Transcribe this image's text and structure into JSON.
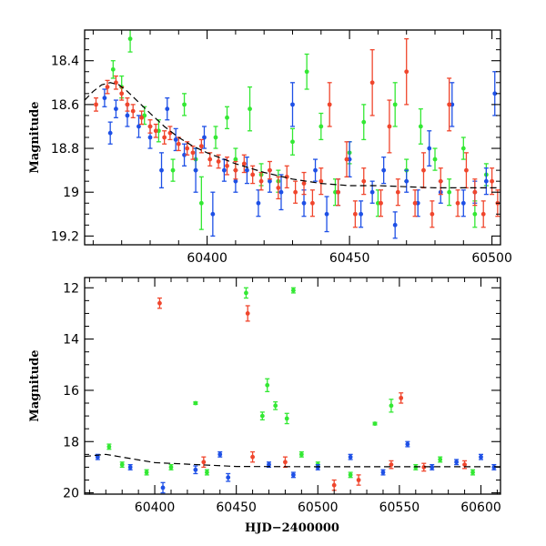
{
  "colors": {
    "green": "#33e833",
    "blue": "#1e50e6",
    "red": "#f0462d",
    "model": "#000000"
  },
  "chart_data": [
    {
      "type": "scatter",
      "title": "",
      "xlabel": "",
      "ylabel": "Magnitude",
      "xlim": [
        60357,
        60503
      ],
      "ylim": [
        19.24,
        18.26
      ],
      "y_inverted": true,
      "xticks": [
        60400,
        60450,
        60500
      ],
      "yticks": [
        18.4,
        18.6,
        18.8,
        19,
        19.2
      ],
      "xtick_labels": [
        "60400",
        "60450",
        "60500"
      ],
      "ytick_labels": [
        "18.4",
        "18.6",
        "18.8",
        "19",
        "19.2"
      ],
      "model_curve": {
        "style": "dashed",
        "x": [
          60357,
          60360,
          60363,
          60366,
          60369,
          60372,
          60376,
          60380,
          60385,
          60390,
          60395,
          60400,
          60410,
          60420,
          60430,
          60440,
          60450,
          60460,
          60470,
          60480,
          60490,
          60500,
          60503
        ],
        "y": [
          18.58,
          18.54,
          18.51,
          18.5,
          18.51,
          18.54,
          18.59,
          18.64,
          18.7,
          18.75,
          18.79,
          18.82,
          18.87,
          18.91,
          18.94,
          18.96,
          18.97,
          18.97,
          18.975,
          18.98,
          18.98,
          18.98,
          18.98
        ]
      },
      "series": [
        {
          "name": "green",
          "points": [
            [
              60367,
              18.44,
              0.04
            ],
            [
              60370,
              18.52,
              0.05
            ],
            [
              60373,
              18.3,
              0.06
            ],
            [
              60378,
              18.65,
              0.04
            ],
            [
              60383,
              18.72,
              0.05
            ],
            [
              60388,
              18.9,
              0.05
            ],
            [
              60392,
              18.6,
              0.05
            ],
            [
              60396,
              18.85,
              0.05
            ],
            [
              60398,
              19.05,
              0.12
            ],
            [
              60403,
              18.75,
              0.05
            ],
            [
              60407,
              18.66,
              0.05
            ],
            [
              60410,
              18.85,
              0.05
            ],
            [
              60415,
              18.62,
              0.1
            ],
            [
              60419,
              18.92,
              0.05
            ],
            [
              60425,
              18.95,
              0.05
            ],
            [
              60430,
              18.77,
              0.06
            ],
            [
              60435,
              18.45,
              0.08
            ],
            [
              60440,
              18.7,
              0.06
            ],
            [
              60445,
              19.0,
              0.06
            ],
            [
              60450,
              18.82,
              0.05
            ],
            [
              60455,
              18.68,
              0.08
            ],
            [
              60460,
              19.05,
              0.06
            ],
            [
              60466,
              18.6,
              0.1
            ],
            [
              60470,
              18.9,
              0.05
            ],
            [
              60475,
              18.7,
              0.08
            ],
            [
              60480,
              18.85,
              0.05
            ],
            [
              60485,
              19.0,
              0.06
            ],
            [
              60490,
              18.8,
              0.05
            ],
            [
              60494,
              19.1,
              0.06
            ],
            [
              60498,
              18.92,
              0.05
            ]
          ]
        },
        {
          "name": "blue",
          "points": [
            [
              60364,
              18.57,
              0.04
            ],
            [
              60366,
              18.73,
              0.05
            ],
            [
              60368,
              18.62,
              0.04
            ],
            [
              60372,
              18.65,
              0.05
            ],
            [
              60376,
              18.7,
              0.05
            ],
            [
              60380,
              18.75,
              0.05
            ],
            [
              60384,
              18.9,
              0.08
            ],
            [
              60386,
              18.62,
              0.05
            ],
            [
              60389,
              18.76,
              0.05
            ],
            [
              60392,
              18.83,
              0.05
            ],
            [
              60396,
              18.9,
              0.1
            ],
            [
              60399,
              18.75,
              0.05
            ],
            [
              60402,
              19.1,
              0.1
            ],
            [
              60406,
              18.9,
              0.05
            ],
            [
              60410,
              18.95,
              0.05
            ],
            [
              60414,
              18.9,
              0.06
            ],
            [
              60418,
              19.05,
              0.06
            ],
            [
              60422,
              18.95,
              0.05
            ],
            [
              60426,
              19.0,
              0.08
            ],
            [
              60430,
              18.6,
              0.1
            ],
            [
              60434,
              19.05,
              0.06
            ],
            [
              60438,
              18.9,
              0.05
            ],
            [
              60442,
              19.1,
              0.08
            ],
            [
              60446,
              19.0,
              0.06
            ],
            [
              60450,
              18.85,
              0.08
            ],
            [
              60454,
              19.1,
              0.06
            ],
            [
              60458,
              19.0,
              0.05
            ],
            [
              60462,
              18.9,
              0.06
            ],
            [
              60466,
              19.15,
              0.06
            ],
            [
              60470,
              18.95,
              0.05
            ],
            [
              60474,
              19.05,
              0.06
            ],
            [
              60478,
              18.8,
              0.08
            ],
            [
              60482,
              19.0,
              0.05
            ],
            [
              60486,
              18.6,
              0.1
            ],
            [
              60490,
              19.05,
              0.06
            ],
            [
              60494,
              19.0,
              0.05
            ],
            [
              60498,
              18.95,
              0.06
            ],
            [
              60501,
              18.55,
              0.1
            ]
          ]
        },
        {
          "name": "red",
          "points": [
            [
              60361,
              18.6,
              0.03
            ],
            [
              60365,
              18.52,
              0.03
            ],
            [
              60368,
              18.5,
              0.03
            ],
            [
              60370,
              18.55,
              0.03
            ],
            [
              60372,
              18.6,
              0.03
            ],
            [
              60374,
              18.63,
              0.03
            ],
            [
              60377,
              18.66,
              0.03
            ],
            [
              60380,
              18.7,
              0.03
            ],
            [
              60382,
              18.72,
              0.03
            ],
            [
              60385,
              18.75,
              0.03
            ],
            [
              60387,
              18.73,
              0.03
            ],
            [
              60390,
              18.78,
              0.03
            ],
            [
              60393,
              18.8,
              0.03
            ],
            [
              60395,
              18.82,
              0.03
            ],
            [
              60398,
              18.79,
              0.03
            ],
            [
              60401,
              18.85,
              0.03
            ],
            [
              60404,
              18.86,
              0.03
            ],
            [
              60407,
              18.88,
              0.04
            ],
            [
              60410,
              18.9,
              0.04
            ],
            [
              60413,
              18.87,
              0.04
            ],
            [
              60416,
              18.92,
              0.04
            ],
            [
              60419,
              18.95,
              0.04
            ],
            [
              60422,
              18.9,
              0.04
            ],
            [
              60425,
              18.98,
              0.05
            ],
            [
              60428,
              18.93,
              0.05
            ],
            [
              60431,
              19.0,
              0.05
            ],
            [
              60434,
              18.96,
              0.05
            ],
            [
              60437,
              19.05,
              0.06
            ],
            [
              60440,
              18.95,
              0.06
            ],
            [
              60443,
              18.6,
              0.1
            ],
            [
              60446,
              19.0,
              0.06
            ],
            [
              60449,
              18.85,
              0.08
            ],
            [
              60452,
              19.1,
              0.06
            ],
            [
              60455,
              18.95,
              0.06
            ],
            [
              60458,
              18.5,
              0.15
            ],
            [
              60461,
              19.05,
              0.06
            ],
            [
              60464,
              18.7,
              0.12
            ],
            [
              60467,
              19.0,
              0.06
            ],
            [
              60470,
              18.45,
              0.15
            ],
            [
              60473,
              19.05,
              0.06
            ],
            [
              60476,
              18.9,
              0.08
            ],
            [
              60479,
              19.1,
              0.06
            ],
            [
              60482,
              18.95,
              0.06
            ],
            [
              60485,
              18.6,
              0.12
            ],
            [
              60488,
              19.05,
              0.06
            ],
            [
              60491,
              18.9,
              0.08
            ],
            [
              60494,
              19.0,
              0.06
            ],
            [
              60497,
              19.1,
              0.06
            ],
            [
              60500,
              18.95,
              0.06
            ],
            [
              60502,
              19.05,
              0.06
            ]
          ]
        }
      ]
    },
    {
      "type": "scatter",
      "title": "",
      "xlabel": "HJD−2400000",
      "ylabel": "Magnitude",
      "xlim": [
        60357,
        60612
      ],
      "ylim": [
        20.05,
        11.6
      ],
      "y_inverted": true,
      "xticks": [
        60400,
        60450,
        60500,
        60550,
        60600
      ],
      "yticks": [
        12,
        14,
        16,
        18,
        20
      ],
      "xtick_labels": [
        "60400",
        "60450",
        "60500",
        "60550",
        "60600"
      ],
      "ytick_labels": [
        "12",
        "14",
        "16",
        "18",
        "20"
      ],
      "model_curve": {
        "style": "dashed",
        "x": [
          60357,
          60370,
          60400,
          60450,
          60500,
          60550,
          60612
        ],
        "y": [
          18.58,
          18.5,
          18.82,
          18.97,
          18.98,
          18.98,
          18.98
        ]
      },
      "series": [
        {
          "name": "green",
          "points": [
            [
              60372,
              18.2,
              0.1
            ],
            [
              60380,
              18.9,
              0.1
            ],
            [
              60395,
              19.2,
              0.1
            ],
            [
              60410,
              19.0,
              0.1
            ],
            [
              60425,
              16.5,
              0.05
            ],
            [
              60432,
              19.2,
              0.1
            ],
            [
              60456,
              12.2,
              0.2
            ],
            [
              60466,
              17.0,
              0.15
            ],
            [
              60469,
              15.8,
              0.25
            ],
            [
              60474,
              16.6,
              0.15
            ],
            [
              60481,
              17.1,
              0.2
            ],
            [
              60485,
              12.1,
              0.1
            ],
            [
              60490,
              18.5,
              0.1
            ],
            [
              60500,
              18.9,
              0.1
            ],
            [
              60520,
              19.3,
              0.1
            ],
            [
              60535,
              17.3,
              0.05
            ],
            [
              60545,
              16.6,
              0.25
            ],
            [
              60560,
              19.0,
              0.1
            ],
            [
              60575,
              18.7,
              0.1
            ],
            [
              60595,
              19.2,
              0.1
            ]
          ]
        },
        {
          "name": "blue",
          "points": [
            [
              60365,
              18.6,
              0.1
            ],
            [
              60385,
              19.0,
              0.1
            ],
            [
              60405,
              19.8,
              0.2
            ],
            [
              60425,
              19.1,
              0.15
            ],
            [
              60440,
              18.5,
              0.1
            ],
            [
              60445,
              19.4,
              0.15
            ],
            [
              60470,
              18.9,
              0.1
            ],
            [
              60485,
              19.3,
              0.1
            ],
            [
              60500,
              19.0,
              0.1
            ],
            [
              60520,
              18.6,
              0.1
            ],
            [
              60540,
              19.2,
              0.1
            ],
            [
              60555,
              18.1,
              0.1
            ],
            [
              60570,
              19.0,
              0.1
            ],
            [
              60585,
              18.8,
              0.1
            ],
            [
              60600,
              18.6,
              0.1
            ],
            [
              60608,
              19.0,
              0.1
            ]
          ]
        },
        {
          "name": "red",
          "points": [
            [
              60403,
              12.6,
              0.2
            ],
            [
              60457,
              13.0,
              0.3
            ],
            [
              60551,
              16.3,
              0.2
            ],
            [
              60430,
              18.8,
              0.2
            ],
            [
              60460,
              18.6,
              0.2
            ],
            [
              60480,
              18.8,
              0.2
            ],
            [
              60510,
              19.7,
              0.2
            ],
            [
              60525,
              19.5,
              0.2
            ],
            [
              60545,
              18.9,
              0.15
            ],
            [
              60565,
              19.0,
              0.15
            ],
            [
              60590,
              18.9,
              0.15
            ]
          ]
        }
      ]
    }
  ]
}
